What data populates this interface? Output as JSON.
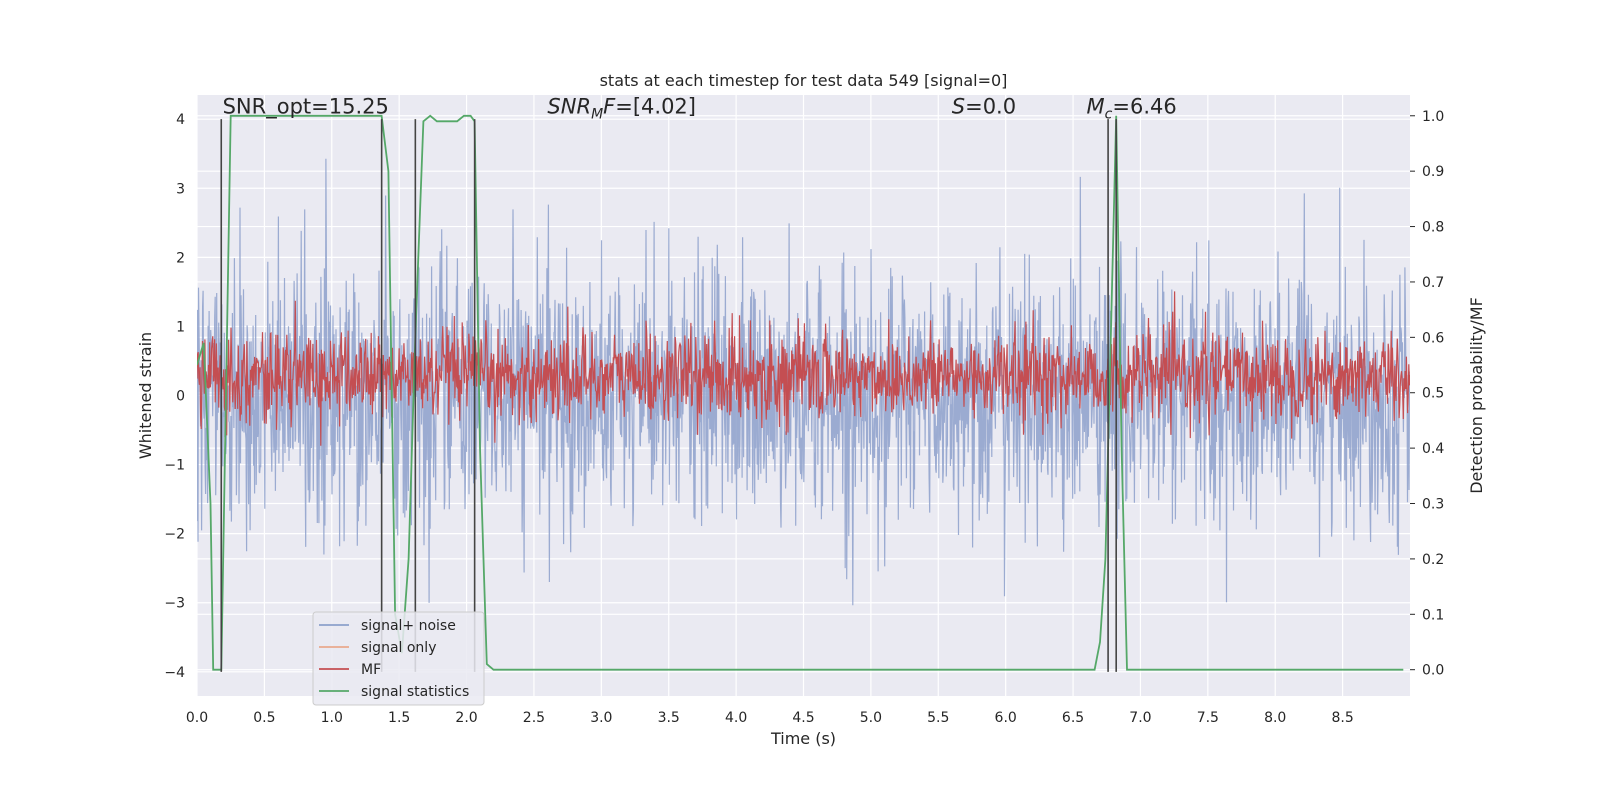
{
  "chart_data": {
    "type": "line",
    "title": "stats at each timestep for test data 549 [signal=0]",
    "xlabel": "Time (s)",
    "ylabel": "Whitened strain",
    "ylabel_right": "Detection probability/MF",
    "xlim": [
      0,
      9.0
    ],
    "ylim": [
      -4.35,
      4.35
    ],
    "ylim_right": [
      -0.0475,
      1.0375
    ],
    "x_ticks": [
      0.0,
      0.5,
      1.0,
      1.5,
      2.0,
      2.5,
      3.0,
      3.5,
      4.0,
      4.5,
      5.0,
      5.5,
      6.0,
      6.5,
      7.0,
      7.5,
      8.0,
      8.5
    ],
    "x_tick_labels": [
      "0.0",
      "0.5",
      "1.0",
      "1.5",
      "2.0",
      "2.5",
      "3.0",
      "3.5",
      "4.0",
      "4.5",
      "5.0",
      "5.5",
      "6.0",
      "6.5",
      "7.0",
      "7.5",
      "8.0",
      "8.5"
    ],
    "y_ticks": [
      -4,
      -3,
      -2,
      -1,
      0,
      1,
      2,
      3,
      4
    ],
    "y_tick_labels": [
      "−4",
      "−3",
      "−2",
      "−1",
      "0",
      "1",
      "2",
      "3",
      "4"
    ],
    "y_right_ticks": [
      0.0,
      0.1,
      0.2,
      0.3,
      0.4,
      0.5,
      0.6,
      0.7,
      0.8,
      0.9,
      1.0
    ],
    "y_right_tick_labels": [
      "0.0",
      "0.1",
      "0.2",
      "0.3",
      "0.4",
      "0.5",
      "0.6",
      "0.7",
      "0.8",
      "0.9",
      "1.0"
    ],
    "grid": true,
    "annotations": [
      {
        "text": "SNR_opt=15.25",
        "x": 0.19,
        "y": 4.08
      },
      {
        "text": "SNR_MF=[4.02]",
        "x": 2.6,
        "y": 4.08
      },
      {
        "text": "S=0.0",
        "x": 5.6,
        "y": 4.08
      },
      {
        "text": "M_c=6.46",
        "x": 6.6,
        "y": 4.08
      }
    ],
    "vlines": [
      0.18,
      1.37,
      1.62,
      2.06,
      6.76,
      6.82
    ],
    "vline_range": [
      -4.0,
      4.0
    ],
    "series": [
      {
        "name": "signal+ noise",
        "color": "#8da0cb",
        "axis": "left",
        "noise_amplitude": 0.9,
        "range": [
          -4.0,
          4.0
        ]
      },
      {
        "name": "signal only",
        "color": "#e9a98e",
        "axis": "left",
        "values": []
      },
      {
        "name": "MF",
        "color": "#c44e52",
        "axis": "right",
        "noise_center": 0.53,
        "noise_amplitude": 0.04
      },
      {
        "name": "signal statistics",
        "color": "#55a868",
        "axis": "right",
        "x": [
          0.0,
          0.05,
          0.1,
          0.12,
          0.18,
          0.25,
          1.37,
          1.42,
          1.47,
          1.52,
          1.57,
          1.62,
          1.68,
          1.73,
          1.78,
          1.83,
          1.88,
          1.93,
          1.98,
          2.03,
          2.06,
          2.1,
          2.15,
          2.2,
          6.66,
          6.7,
          6.74,
          6.78,
          6.82,
          6.86,
          6.9,
          8.95
        ],
        "y": [
          0.55,
          0.59,
          0.3,
          0.0,
          0.0,
          1.0,
          1.0,
          0.9,
          0.1,
          0.03,
          0.2,
          0.6,
          0.99,
          1.0,
          0.99,
          0.99,
          0.99,
          0.99,
          1.0,
          1.0,
          0.99,
          0.4,
          0.01,
          0.0,
          0.0,
          0.05,
          0.2,
          0.6,
          1.0,
          0.4,
          0.0,
          0.0
        ]
      }
    ],
    "legend": {
      "location": "lower-left",
      "entries": [
        "signal+ noise",
        "signal only",
        "MF",
        "signal statistics"
      ]
    }
  }
}
